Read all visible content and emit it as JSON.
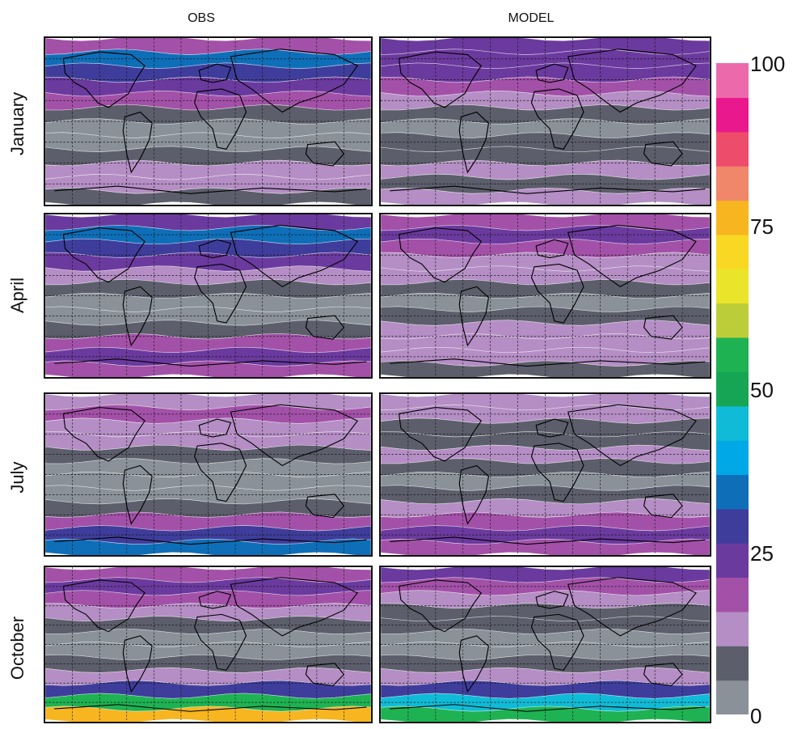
{
  "figure": {
    "columns": [
      "OBS",
      "MODEL"
    ],
    "rows": [
      "January",
      "April",
      "July",
      "October"
    ]
  },
  "colorbar": {
    "tick_labels": [
      "100",
      "75",
      "50",
      "25",
      "0"
    ],
    "levels": [
      "#8a9199",
      "#5c5e6b",
      "#b48ec4",
      "#a351a8",
      "#6b3a9e",
      "#3f3d9b",
      "#0e6fb8",
      "#00a8e6",
      "#0fbbd6",
      "#16a554",
      "#1eb252",
      "#bccd3a",
      "#eae42a",
      "#f8d823",
      "#f7b520",
      "#f0866a",
      "#ee4c6b",
      "#e9198d",
      "#ec6aab"
    ]
  },
  "chart_data": {
    "type": "heatmap",
    "title": "",
    "xlabel": "",
    "ylabel": "",
    "value_range": [
      0,
      100
    ],
    "columns": [
      "OBS",
      "MODEL"
    ],
    "rows": [
      "January",
      "April",
      "July",
      "October"
    ],
    "zonal_band_levels": {
      "OBS-January": [
        20,
        35,
        30,
        25,
        18,
        10,
        5,
        3,
        8,
        12,
        15,
        10
      ],
      "MODEL-January": [
        22,
        25,
        22,
        18,
        12,
        8,
        5,
        8,
        10,
        12,
        10,
        12
      ],
      "OBS-April": [
        25,
        32,
        28,
        22,
        15,
        8,
        3,
        5,
        10,
        18,
        25,
        20
      ],
      "MODEL-April": [
        18,
        22,
        20,
        15,
        12,
        8,
        5,
        8,
        12,
        15,
        12,
        10
      ],
      "OBS-July": [
        15,
        18,
        15,
        12,
        10,
        5,
        3,
        5,
        10,
        20,
        28,
        35
      ],
      "MODEL-July": [
        15,
        12,
        10,
        8,
        12,
        8,
        5,
        8,
        15,
        20,
        22,
        20
      ],
      "OBS-October": [
        20,
        25,
        18,
        12,
        8,
        5,
        3,
        8,
        15,
        30,
        55,
        78
      ],
      "MODEL-October": [
        22,
        18,
        12,
        10,
        8,
        5,
        5,
        8,
        15,
        28,
        45,
        55
      ]
    }
  }
}
